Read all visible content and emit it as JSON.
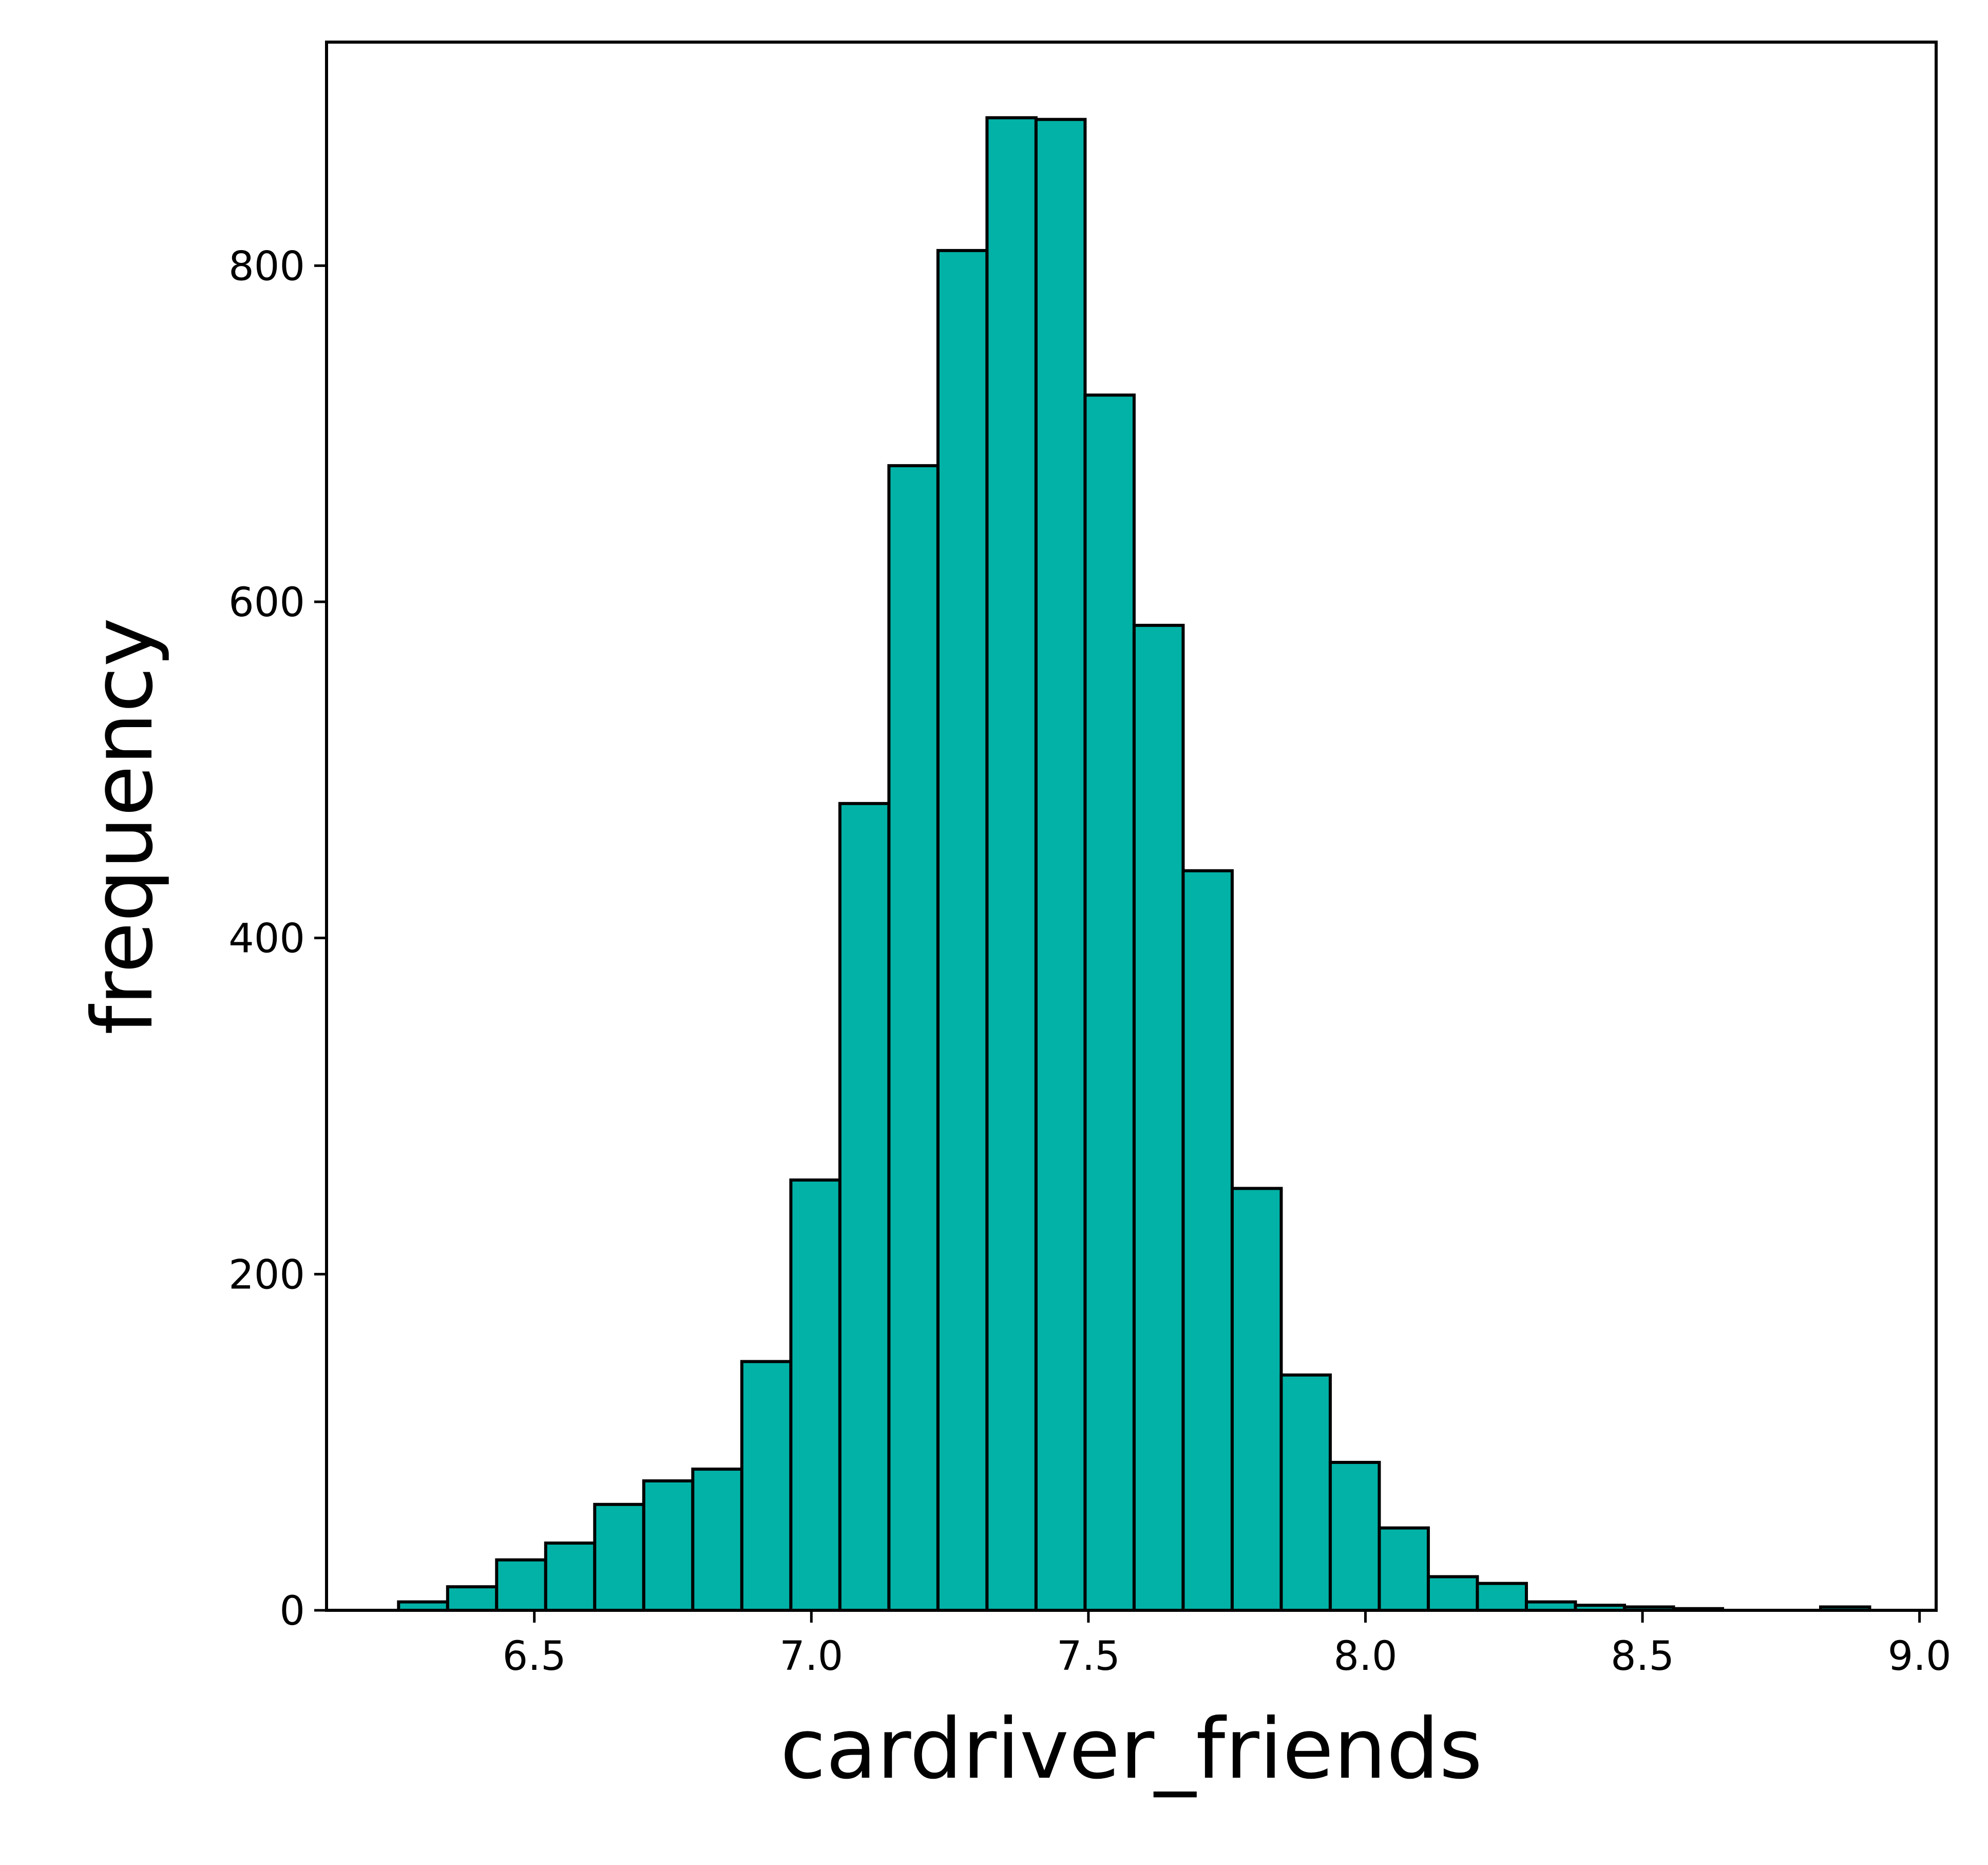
{
  "colors": {
    "bar_fill": "#02b2a6",
    "bar_edge": "#000000",
    "axis": "#000000",
    "background": "#ffffff"
  },
  "chart_data": {
    "type": "bar",
    "subtype": "histogram",
    "title": "",
    "xlabel": "cardriver_friends",
    "ylabel": "frequency",
    "xlim": [
      6.125,
      9.03
    ],
    "ylim": [
      0,
      933
    ],
    "xticks": [
      6.5,
      7.0,
      7.5,
      8.0,
      8.5,
      9.0
    ],
    "xtick_labels": [
      "6.5",
      "7.0",
      "7.5",
      "8.0",
      "8.5",
      "9.0"
    ],
    "yticks": [
      0,
      200,
      400,
      600,
      800
    ],
    "ytick_labels": [
      "0",
      "200",
      "400",
      "600",
      "800"
    ],
    "grid": false,
    "legend": "none",
    "bin_edges": [
      6.255,
      6.3435,
      6.432,
      6.5205,
      6.609,
      6.6975,
      6.786,
      6.8745,
      6.963,
      7.0515,
      7.14,
      7.2285,
      7.317,
      7.4055,
      7.494,
      7.5825,
      7.671,
      7.7595,
      7.848,
      7.9365,
      8.025,
      8.1135,
      8.202,
      8.2905,
      8.379,
      8.4675,
      8.556,
      8.6445,
      8.733,
      8.8215,
      8.91
    ],
    "values": [
      5,
      14,
      30,
      40,
      63,
      77,
      84,
      148,
      256,
      480,
      681,
      809,
      888,
      887,
      723,
      586,
      440,
      251,
      140,
      88,
      49,
      20,
      16,
      5,
      3,
      2,
      1,
      0,
      0,
      2
    ]
  }
}
